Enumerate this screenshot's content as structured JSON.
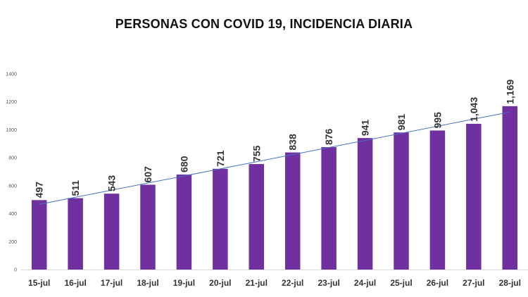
{
  "chart_data": {
    "type": "bar",
    "title": "PERSONAS CON COVID 19, INCIDENCIA DIARIA",
    "categories": [
      "15-jul",
      "16-jul",
      "17-jul",
      "18-jul",
      "19-jul",
      "20-jul",
      "21-jul",
      "22-jul",
      "23-jul",
      "24-jul",
      "25-jul",
      "26-jul",
      "27-jul",
      "28-jul"
    ],
    "values": [
      497,
      511,
      543,
      607,
      680,
      721,
      755,
      838,
      876,
      941,
      981,
      995,
      1043,
      1169
    ],
    "data_labels": [
      "497",
      "511",
      "543",
      "607",
      "680",
      "721",
      "755",
      "838",
      "876",
      "941",
      "981",
      "995",
      "1,043",
      "1,169"
    ],
    "ylim": [
      0,
      1400
    ],
    "yticks": [
      0,
      200,
      400,
      600,
      800,
      1000,
      1200,
      1400
    ],
    "xlabel": "",
    "ylabel": "",
    "grid": false,
    "legend": "none",
    "trendline": "linear",
    "colors": {
      "bar": "#7030A0",
      "trendline": "#4472C4"
    }
  }
}
